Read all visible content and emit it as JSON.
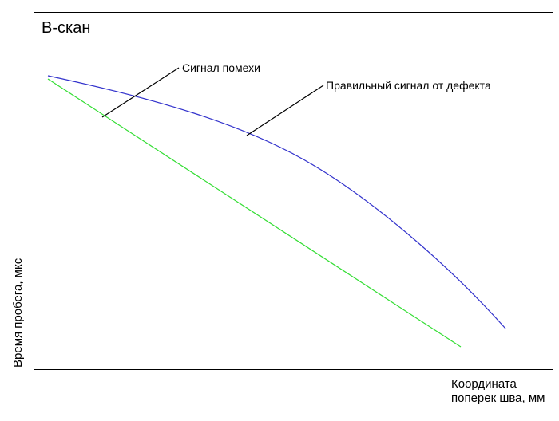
{
  "title": "В-скан",
  "annotations": {
    "noise_signal": "Сигнал помехи",
    "defect_signal": "Правильный сигнал от дефекта"
  },
  "axes": {
    "ylabel": "Время пробега, мкс",
    "xlabel_line1": "Координата",
    "xlabel_line2": "поперек шва, мм"
  },
  "colors": {
    "defect_curve": "#3333cc",
    "noise_line": "#33dd33",
    "frame": "#000000"
  }
}
